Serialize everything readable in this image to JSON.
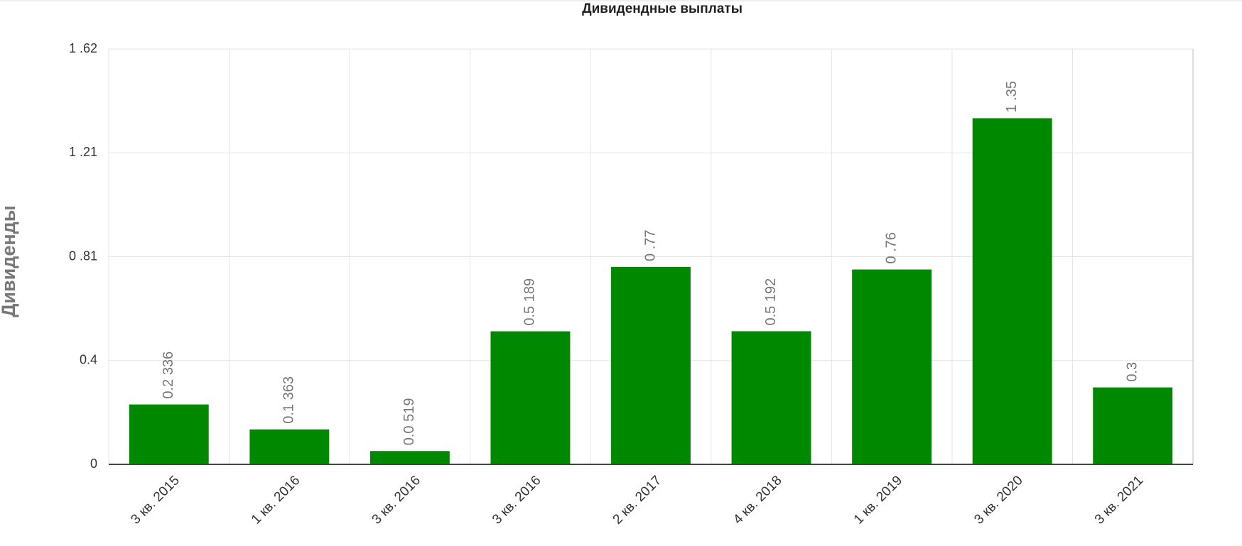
{
  "chart_data": {
    "type": "bar",
    "title": "Дивидендные выплаты",
    "y_label": "Дивиденды",
    "categories": [
      "3 кв. 2015",
      "1 кв. 2016",
      "3 кв. 2016",
      "3 кв. 2016",
      "2 кв. 2017",
      "4 кв. 2018",
      "1 кв. 2019",
      "3 кв. 2020",
      "3 кв. 2021"
    ],
    "values": [
      0.2336,
      0.1363,
      0.0519,
      0.5189,
      0.77,
      0.5192,
      0.76,
      1.35,
      0.3
    ],
    "value_labels": [
      "0.2 336",
      "0.1 363",
      "0.0 519",
      "0.5 189",
      "0 .77",
      "0.5 192",
      "0 .76",
      "1 .35",
      "0.3"
    ],
    "color": "#008800",
    "ylim": [
      0,
      1.62
    ],
    "yticks": [
      0,
      {
        "value": 0.405,
        "label": "0.4"
      },
      {
        "value": 0.81,
        "label": "0 .81"
      },
      {
        "value": 1.215,
        "label": "1 .21"
      },
      {
        "value": 1.62,
        "label": "1 .62"
      }
    ],
    "grid": true
  }
}
